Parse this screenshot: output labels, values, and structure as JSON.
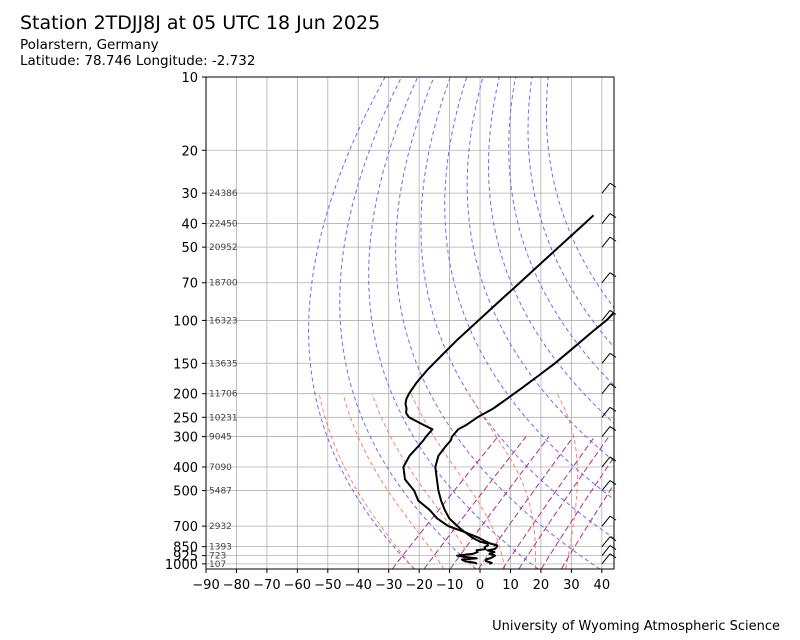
{
  "header": {
    "title": "Station 2TDJJ8J at 05 UTC 18 Jun 2025",
    "location": "Polarstern, Germany",
    "coords": "Latitude: 78.746 Longitude: -2.732"
  },
  "footer": {
    "credit": "University of Wyoming Atmospheric Science"
  },
  "chart_data": {
    "type": "skew-t",
    "title": "Station 2TDJJ8J at 05 UTC 18 Jun 2025",
    "xlabel": "",
    "ylabel": "",
    "xlim": [
      -90,
      44
    ],
    "ylim": [
      1050,
      10
    ],
    "x_ticks": [
      -90,
      -80,
      -70,
      -60,
      -50,
      -40,
      -30,
      -20,
      -10,
      0,
      10,
      20,
      30,
      40
    ],
    "y_ticks": [
      1000,
      925,
      850,
      700,
      500,
      400,
      300,
      250,
      200,
      150,
      100,
      70,
      50,
      40,
      30,
      20,
      10
    ],
    "y_scale": "log",
    "grid": true,
    "height_labels": [
      {
        "p": 1000,
        "label": "107"
      },
      {
        "p": 925,
        "label": "723"
      },
      {
        "p": 850,
        "label": "1393"
      },
      {
        "p": 700,
        "label": "2932"
      },
      {
        "p": 500,
        "label": "5487"
      },
      {
        "p": 400,
        "label": "7090"
      },
      {
        "p": 300,
        "label": "9045"
      },
      {
        "p": 250,
        "label": "10231"
      },
      {
        "p": 200,
        "label": "11706"
      },
      {
        "p": 150,
        "label": "13635"
      },
      {
        "p": 100,
        "label": "16323"
      },
      {
        "p": 70,
        "label": "18700"
      },
      {
        "p": 50,
        "label": "20952"
      },
      {
        "p": 40,
        "label": "22450"
      },
      {
        "p": 30,
        "label": "24386"
      }
    ],
    "series": [
      {
        "role": "temperature",
        "color": "#000000",
        "points": [
          [
            1000,
            3.0
          ],
          [
            990,
            3.5
          ],
          [
            975,
            1.0
          ],
          [
            960,
            0.5
          ],
          [
            945,
            1.5
          ],
          [
            925,
            2.0
          ],
          [
            910,
            -0.5
          ],
          [
            895,
            0.5
          ],
          [
            880,
            -2.5
          ],
          [
            870,
            -0.5
          ],
          [
            855,
            -0.5
          ],
          [
            840,
            -1.0
          ],
          [
            825,
            -4.0
          ],
          [
            810,
            -6.0
          ],
          [
            780,
            -10.0
          ],
          [
            740,
            -16.5
          ],
          [
            700,
            -21.0
          ],
          [
            650,
            -26.5
          ],
          [
            600,
            -31.0
          ],
          [
            550,
            -35.5
          ],
          [
            500,
            -40.0
          ],
          [
            450,
            -44.5
          ],
          [
            400,
            -49.5
          ],
          [
            360,
            -52.5
          ],
          [
            330,
            -53.5
          ],
          [
            310,
            -54.0
          ],
          [
            300,
            -55.0
          ],
          [
            280,
            -55.5
          ],
          [
            270,
            -54.5
          ],
          [
            250,
            -53.5
          ],
          [
            230,
            -51.5
          ],
          [
            210,
            -50.5
          ],
          [
            190,
            -49.5
          ],
          [
            170,
            -48.5
          ],
          [
            150,
            -47.5
          ],
          [
            130,
            -47.0
          ],
          [
            110,
            -46.5
          ],
          [
            100,
            -46.0
          ],
          [
            90,
            -46.5
          ],
          [
            80,
            -46.0
          ],
          [
            70,
            -45.5
          ],
          [
            60,
            -45.0
          ],
          [
            50,
            -44.5
          ],
          [
            40,
            -44.0
          ],
          [
            37,
            -44.0
          ]
        ]
      },
      {
        "role": "dewpoint",
        "color": "#000000",
        "points": [
          [
            1000,
            -1.0
          ],
          [
            990,
            -2.0
          ],
          [
            975,
            -6.0
          ],
          [
            960,
            -7.5
          ],
          [
            950,
            -3.0
          ],
          [
            935,
            -8.0
          ],
          [
            925,
            -10.5
          ],
          [
            910,
            -6.0
          ],
          [
            895,
            -5.0
          ],
          [
            880,
            -6.0
          ],
          [
            870,
            -3.5
          ],
          [
            855,
            -4.5
          ],
          [
            840,
            -4.0
          ],
          [
            825,
            -5.0
          ],
          [
            810,
            -8.0
          ],
          [
            780,
            -12.0
          ],
          [
            740,
            -16.5
          ],
          [
            700,
            -24.0
          ],
          [
            650,
            -30.5
          ],
          [
            600,
            -36.0
          ],
          [
            550,
            -43.0
          ],
          [
            500,
            -48.0
          ],
          [
            450,
            -55.0
          ],
          [
            400,
            -60.0
          ],
          [
            360,
            -62.0
          ],
          [
            330,
            -62.5
          ],
          [
            310,
            -63.0
          ],
          [
            300,
            -63.5
          ],
          [
            280,
            -64.0
          ],
          [
            270,
            -68.0
          ],
          [
            260,
            -72.0
          ],
          [
            250,
            -76.0
          ],
          [
            240,
            -78.5
          ],
          [
            230,
            -80.0
          ],
          [
            220,
            -82.0
          ],
          [
            210,
            -83.5
          ],
          [
            200,
            -84.5
          ],
          [
            180,
            -86.0
          ],
          [
            160,
            -87.0
          ],
          [
            140,
            -87.5
          ],
          [
            120,
            -88.0
          ],
          [
            100,
            -88.0
          ],
          [
            80,
            -88.0
          ],
          [
            70,
            -88.0
          ],
          [
            60,
            -88.0
          ],
          [
            50,
            -88.0
          ],
          [
            40,
            -88.0
          ],
          [
            37,
            -88.0
          ]
        ]
      }
    ],
    "reference_lines": {
      "dry_adiabats_theta_K": [
        250,
        270,
        290,
        310,
        330,
        350,
        370,
        390,
        410,
        430,
        450
      ],
      "moist_adiabats_start_C": [
        -20,
        -10,
        0,
        10,
        20,
        30
      ],
      "mixing_ratios_gkg": [
        0.4,
        1,
        2,
        4,
        7,
        10,
        16,
        24
      ]
    },
    "colors": {
      "dry_adiabat": "#6a6aff",
      "moist_adiabat": "#ff8060",
      "mixing_ratio": "#b0307f",
      "grid": "#b0b0b0"
    }
  }
}
